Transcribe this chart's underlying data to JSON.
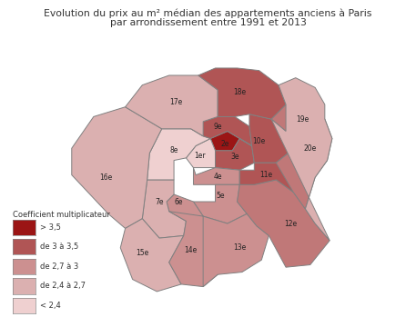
{
  "title_line1": "Evolution du prix au m² médian des appartements anciens à Paris",
  "title_line2": "par arrondissement entre 1991 et 2013",
  "legend_title": "Coefficient multiplicateur",
  "colors": {
    "dark_red": "#9b1515",
    "medium_red": "#b05555",
    "light_medium_red": "#c07878",
    "light_red": "#cc9090",
    "lighter_red": "#dbb0b0",
    "lightest_red": "#efd0d0"
  },
  "arrondissements": {
    "1er": "lightest_red",
    "2e": "dark_red",
    "3e": "medium_red",
    "4e": "light_red",
    "5e": "light_red",
    "6e": "light_red",
    "7e": "lighter_red",
    "8e": "lightest_red",
    "9e": "medium_red",
    "10e": "medium_red",
    "11e": "medium_red",
    "12e": "light_medium_red",
    "13e": "light_red",
    "14e": "light_red",
    "15e": "lighter_red",
    "16e": "lighter_red",
    "17e": "lighter_red",
    "18e": "medium_red",
    "19e": "lighter_red",
    "20e": "light_medium_red"
  },
  "background": "#ffffff",
  "border_color": "#808080",
  "legend_labels": [
    "> 3,5",
    "de 3 à 3,5",
    "de 2,7 à 3",
    "de 2,4 à 2,7",
    "< 2,4"
  ],
  "legend_color_keys": [
    "dark_red",
    "medium_red",
    "light_red",
    "lighter_red",
    "lightest_red"
  ]
}
